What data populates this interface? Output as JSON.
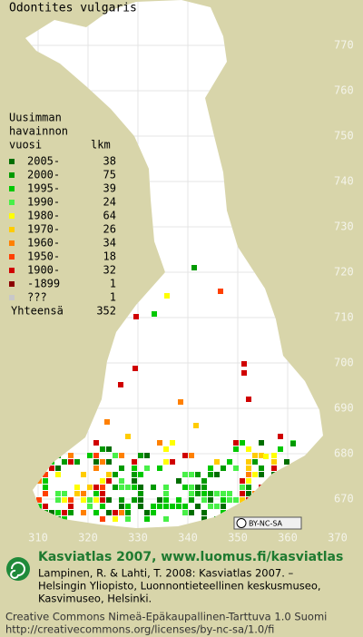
{
  "title": "Odontites vulgaris",
  "legend": {
    "header": [
      "Uusimman",
      "havainnon",
      "vuosi"
    ],
    "count_header": "lkm",
    "rows": [
      {
        "label": "2005-",
        "count": 38,
        "color": "#006e00"
      },
      {
        "label": "2000-",
        "count": 75,
        "color": "#009a00"
      },
      {
        "label": "1995-",
        "count": 39,
        "color": "#00c800"
      },
      {
        "label": "1990-",
        "count": 24,
        "color": "#48f048"
      },
      {
        "label": "1980-",
        "count": 64,
        "color": "#ffff00"
      },
      {
        "label": "1970-",
        "count": 26,
        "color": "#ffcc00"
      },
      {
        "label": "1960-",
        "count": 34,
        "color": "#ff8000"
      },
      {
        "label": "1950-",
        "count": 18,
        "color": "#ff4000"
      },
      {
        "label": "1900-",
        "count": 32,
        "color": "#d00000"
      },
      {
        "label": "-1899",
        "count": 1,
        "color": "#8c0000"
      },
      {
        "label": "???",
        "count": 1,
        "color": "#c8c8c8"
      }
    ],
    "total_label": "Yhteensä",
    "total": 352
  },
  "map": {
    "xticks": [
      310,
      320,
      330,
      340,
      350,
      360,
      370
    ],
    "yticks": [
      670,
      680,
      690,
      700,
      710,
      720,
      730,
      740,
      750,
      760,
      770
    ]
  },
  "license_badge": "BY-NC-SA",
  "footer": {
    "heading": "Kasviatlas 2007, www.luomus.fi/kasviatlas",
    "citation": [
      "Lampinen, R. & Lahti, T. 2008: Kasviatlas 2007. –",
      "Helsingin Yliopisto, Luonnontieteellinen keskusmuseo,",
      "Kasvimuseo, Helsinki."
    ],
    "license": [
      "Creative Commons Nimeä-Epäkaupallinen-Tarttuva 1.0 Suomi",
      "http://creativecommons.org/licenses/by-nc-sa/1.0/fi"
    ]
  }
}
